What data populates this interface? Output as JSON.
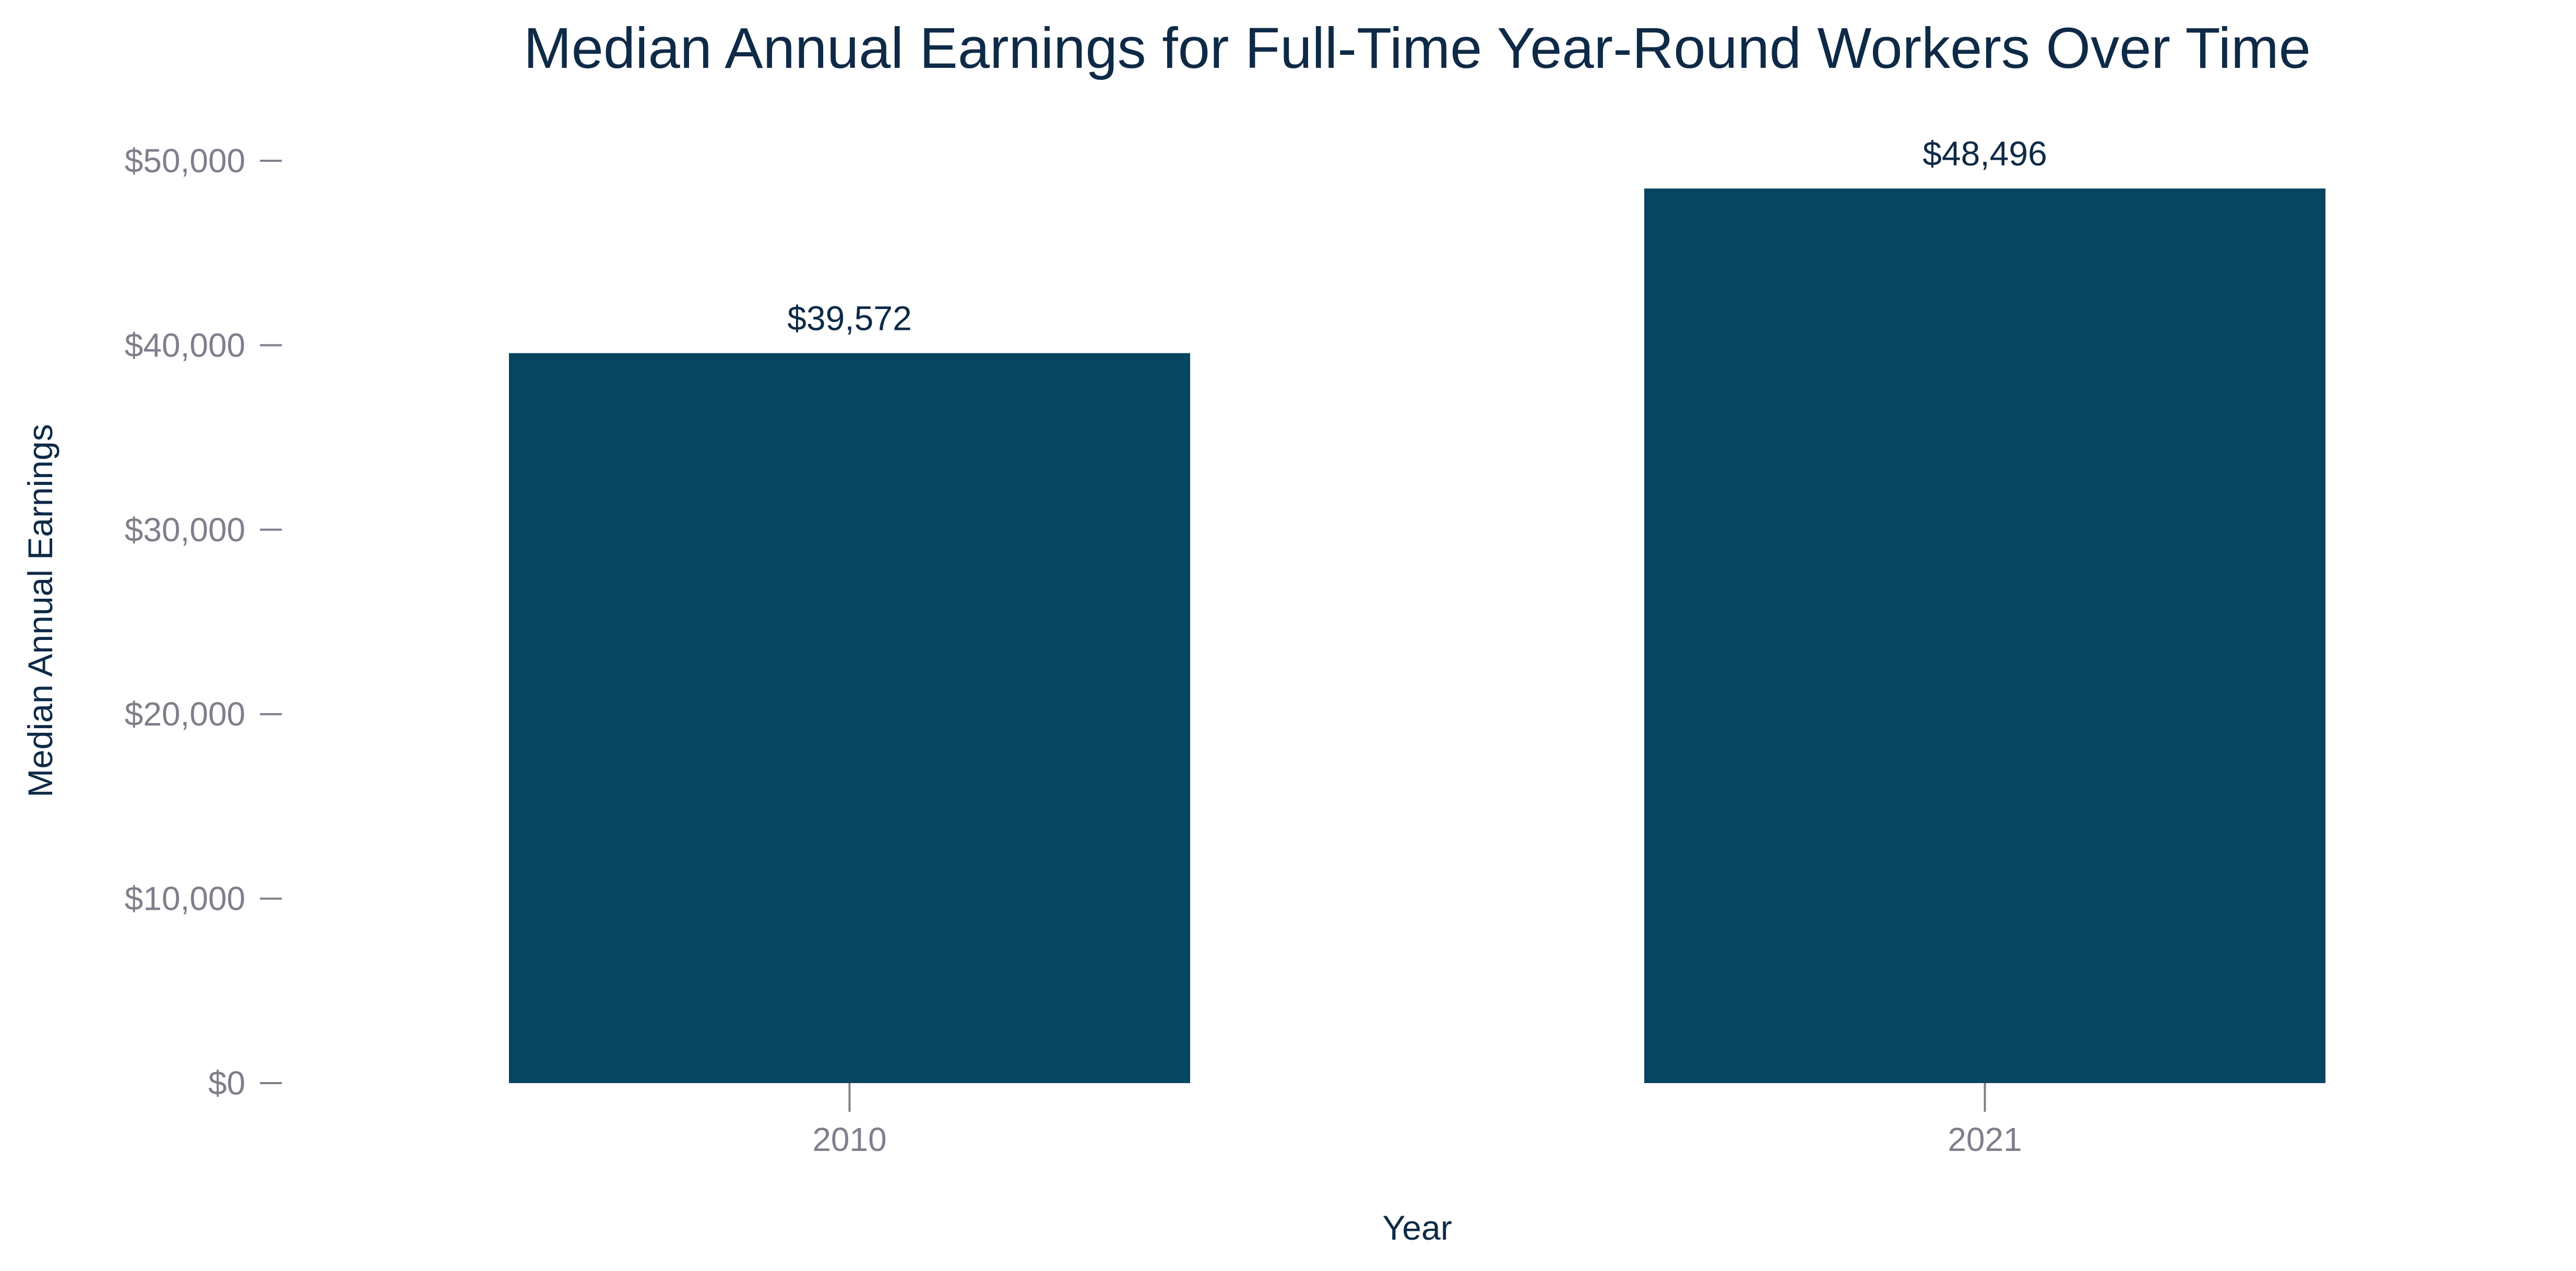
{
  "chart_data": {
    "type": "bar",
    "title": "Median Annual Earnings for Full-Time Year-Round Workers Over Time",
    "xlabel": "Year",
    "ylabel": "Median Annual Earnings",
    "categories": [
      "2010",
      "2021"
    ],
    "values": [
      39572,
      48496
    ],
    "data_labels": [
      "$39,572",
      "$48,496"
    ],
    "ylim": [
      0,
      50000
    ],
    "y_ticks": [
      0,
      10000,
      20000,
      30000,
      40000,
      50000
    ],
    "y_tick_labels": [
      "$0",
      "$10,000",
      "$20,000",
      "$30,000",
      "$40,000",
      "$50,000"
    ],
    "grid": false,
    "legend": "none",
    "colors": {
      "bar": "#08455F",
      "title": "#0E2A47",
      "axis_title": "#0E2A47",
      "tick_label": "#7F7F8C",
      "tick_mark": "#7F7F8C",
      "data_label": "#0E2A47"
    }
  }
}
